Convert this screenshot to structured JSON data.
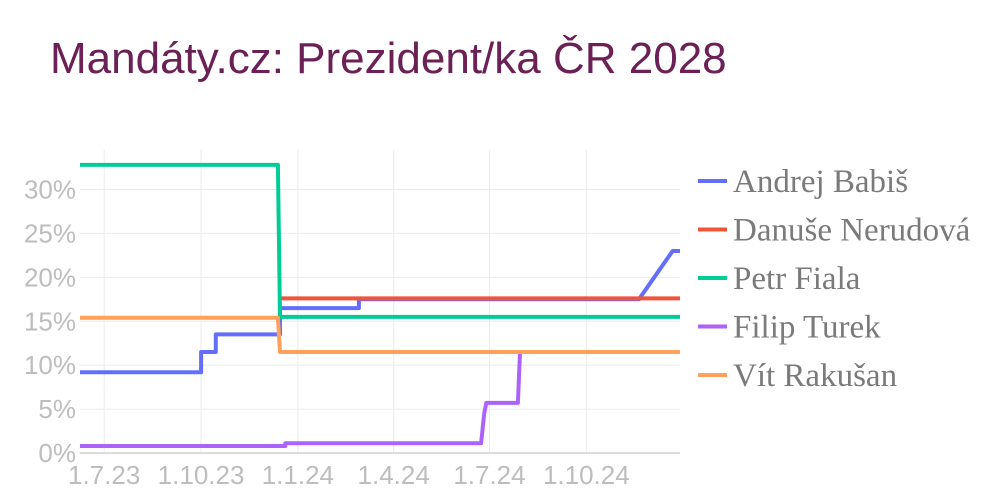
{
  "chart_data": {
    "type": "line",
    "title": "Mandáty.cz: Prezident/ka ČR 2028",
    "xlabel": "",
    "ylabel": "",
    "x_ticks": [
      "1.7.23",
      "1.10.23",
      "1.1.24",
      "1.4.24",
      "1.7.24",
      "1.10.24"
    ],
    "y_ticks": [
      "0%",
      "5%",
      "10%",
      "15%",
      "20%",
      "25%",
      "30%"
    ],
    "ylim": [
      0,
      0.345
    ],
    "xlim": [
      "2023-06-08",
      "2024-12-29"
    ],
    "grid": true,
    "legend_position": "right",
    "series": [
      {
        "name": "Andrej Babiš",
        "color": "#636efa",
        "points": [
          [
            "2023-06-08",
            0.092
          ],
          [
            "2023-10-01",
            0.092
          ],
          [
            "2023-10-01",
            0.115
          ],
          [
            "2023-10-15",
            0.115
          ],
          [
            "2023-10-15",
            0.135
          ],
          [
            "2023-12-15",
            0.135
          ],
          [
            "2023-12-15",
            0.165
          ],
          [
            "2024-02-28",
            0.165
          ],
          [
            "2024-02-28",
            0.175
          ],
          [
            "2024-11-20",
            0.175
          ],
          [
            "2024-12-22",
            0.23
          ],
          [
            "2024-12-29",
            0.23
          ]
        ]
      },
      {
        "name": "Danuše Nerudová",
        "color": "#ef553b",
        "points": [
          [
            "2023-12-15",
            0.176
          ],
          [
            "2024-12-29",
            0.176
          ]
        ]
      },
      {
        "name": "Petr Fiala",
        "color": "#00cc96",
        "points": [
          [
            "2023-06-08",
            0.328
          ],
          [
            "2023-12-13",
            0.328
          ],
          [
            "2023-12-15",
            0.155
          ],
          [
            "2024-12-29",
            0.155
          ]
        ]
      },
      {
        "name": "Filip Turek",
        "color": "#ab63fa",
        "points": [
          [
            "2023-06-08",
            0.008
          ],
          [
            "2023-12-20",
            0.008
          ],
          [
            "2023-12-20",
            0.011
          ],
          [
            "2024-06-23",
            0.011
          ],
          [
            "2024-06-26",
            0.045
          ],
          [
            "2024-06-28",
            0.057
          ],
          [
            "2024-07-28",
            0.057
          ],
          [
            "2024-07-30",
            0.115
          ],
          [
            "2024-12-29",
            0.115
          ]
        ]
      },
      {
        "name": "Vít Rakušan",
        "color": "#ffa15a",
        "points": [
          [
            "2023-06-08",
            0.154
          ],
          [
            "2023-12-13",
            0.154
          ],
          [
            "2023-12-15",
            0.115
          ],
          [
            "2024-12-29",
            0.115
          ]
        ]
      }
    ]
  }
}
